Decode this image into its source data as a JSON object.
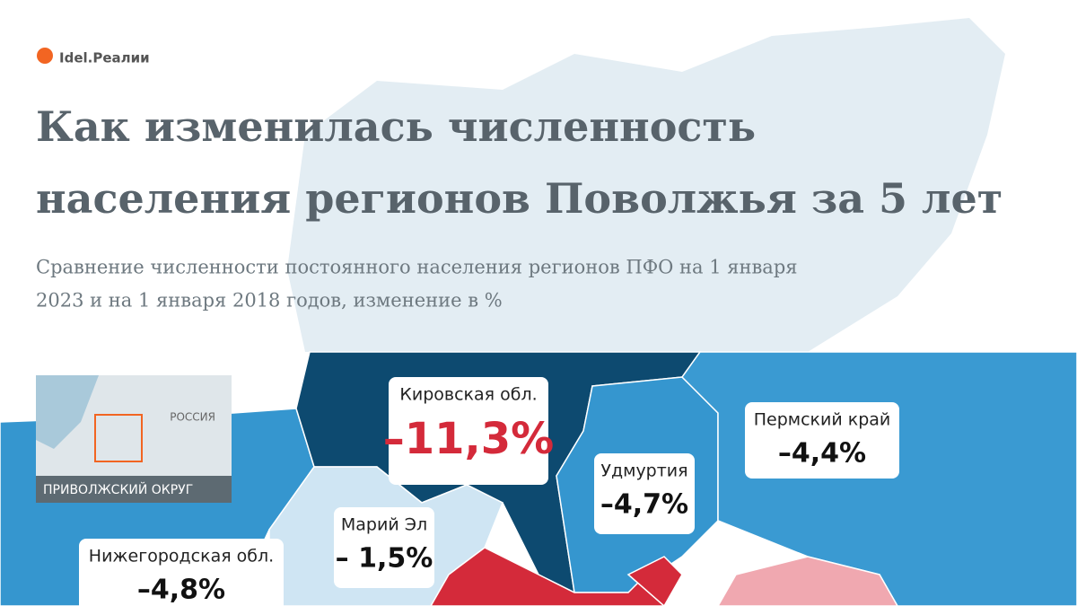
{
  "header": {
    "logo": "Idel.Реалии",
    "title_lines": [
      "Как изменилась численность",
      "населения регионов Поволжья за 5 лет"
    ],
    "subtitle_lines": [
      "Сравнение численности постоянного населения регионов ПФО на 1 января",
      "2023 и на 1 января 2018 годов, изменение в %"
    ]
  },
  "inset": {
    "country": "РОССИЯ",
    "district": "ПРИВОЛЖСКИЙ ОКРУГ"
  },
  "regions": [
    {
      "name": "Кировская обл.",
      "change": "–11,3%"
    },
    {
      "name": "Пермский край",
      "change": "–4,4%"
    },
    {
      "name": "Удмуртия",
      "change": "–4,7%"
    },
    {
      "name": "Марий Эл",
      "change": "– 1,5%"
    },
    {
      "name": "Нижегородская обл.",
      "change": "–4,8%"
    }
  ]
}
